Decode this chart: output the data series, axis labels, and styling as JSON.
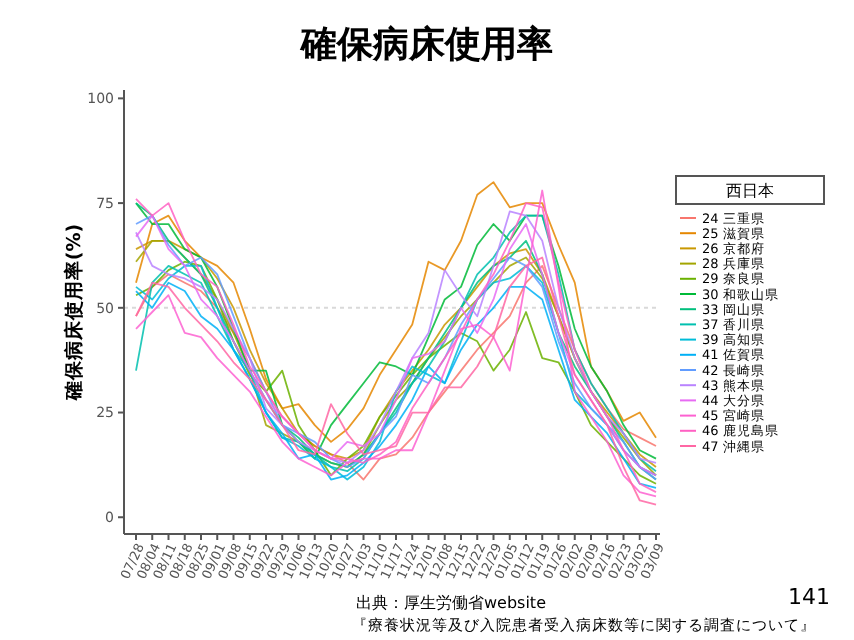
{
  "chart_data": {
    "type": "line",
    "title": "確保病床使用率",
    "ylabel": "確保病床使用率(%)",
    "legend_title": "西日本",
    "legend": "right",
    "grid": false,
    "marker": "none",
    "line_style": "solid",
    "ylim": [
      -4,
      102
    ],
    "yticks": [
      0,
      25,
      50,
      75,
      100
    ],
    "categories": [
      "07/28",
      "08/04",
      "08/11",
      "08/18",
      "08/25",
      "09/01",
      "09/08",
      "09/15",
      "09/22",
      "09/29",
      "10/06",
      "10/13",
      "10/20",
      "10/27",
      "11/03",
      "11/10",
      "11/17",
      "11/24",
      "12/01",
      "12/08",
      "12/15",
      "12/22",
      "12/29",
      "01/05",
      "01/12",
      "01/19",
      "01/26",
      "02/02",
      "02/09",
      "02/16",
      "02/23",
      "03/02",
      "03/09"
    ],
    "ref_lines": [
      {
        "axis": "y",
        "value": 50,
        "color": "#d9d9d9",
        "line_style": "dotted"
      }
    ],
    "series": [
      {
        "name": "24 三重県",
        "color": "#F8766D",
        "values": [
          48,
          55,
          58,
          56,
          54,
          50,
          44,
          38,
          30,
          24,
          20,
          17,
          15,
          13,
          9,
          14,
          15,
          19,
          25,
          30,
          35,
          40,
          44,
          48,
          56,
          60,
          50,
          40,
          32,
          26,
          21,
          19,
          17
        ]
      },
      {
        "name": "25 滋賀県",
        "color": "#E58700",
        "values": [
          56,
          70,
          72,
          66,
          62,
          60,
          56,
          45,
          33,
          26,
          27,
          22,
          18,
          21,
          26,
          34,
          40,
          46,
          61,
          59,
          66,
          77,
          80,
          74,
          75,
          75,
          65,
          56,
          36,
          30,
          23,
          25,
          19
        ]
      },
      {
        "name": "26 京都府",
        "color": "#C99800",
        "values": [
          64,
          66,
          66,
          64,
          62,
          57,
          50,
          40,
          32,
          26,
          20,
          17,
          15,
          14,
          16,
          24,
          30,
          35,
          40,
          46,
          50,
          55,
          60,
          63,
          64,
          58,
          48,
          38,
          30,
          25,
          20,
          15,
          12
        ]
      },
      {
        "name": "28 兵庫県",
        "color": "#A3A500",
        "values": [
          61,
          66,
          66,
          62,
          58,
          52,
          44,
          35,
          22,
          20,
          18,
          15,
          13,
          12,
          15,
          22,
          28,
          32,
          38,
          43,
          48,
          52,
          56,
          60,
          62,
          57,
          48,
          38,
          30,
          24,
          19,
          14,
          10
        ]
      },
      {
        "name": "29 奈良県",
        "color": "#6BB100",
        "values": [
          53,
          55,
          59,
          61,
          60,
          52,
          42,
          34,
          30,
          35,
          22,
          16,
          10,
          14,
          17,
          24,
          29,
          34,
          38,
          41,
          44,
          42,
          35,
          40,
          49,
          38,
          37,
          30,
          22,
          18,
          14,
          10,
          8
        ]
      },
      {
        "name": "30 和歌山県",
        "color": "#00BA38",
        "values": [
          75,
          70,
          70,
          64,
          62,
          55,
          45,
          35,
          35,
          22,
          18,
          14,
          22,
          27,
          32,
          37,
          36,
          34,
          43,
          52,
          55,
          65,
          70,
          66,
          72,
          72,
          60,
          45,
          36,
          30,
          22,
          16,
          14
        ]
      },
      {
        "name": "33 岡山県",
        "color": "#00BF7D",
        "values": [
          75,
          72,
          66,
          62,
          58,
          50,
          42,
          35,
          28,
          22,
          19,
          15,
          13,
          12,
          15,
          20,
          26,
          32,
          38,
          44,
          50,
          56,
          60,
          62,
          66,
          58,
          44,
          36,
          30,
          24,
          18,
          12,
          9
        ]
      },
      {
        "name": "37 香川県",
        "color": "#00C0AF",
        "values": [
          35,
          56,
          60,
          58,
          56,
          48,
          40,
          33,
          25,
          19,
          18,
          15,
          12,
          11,
          14,
          20,
          25,
          32,
          36,
          42,
          50,
          58,
          62,
          68,
          72,
          72,
          58,
          40,
          32,
          26,
          20,
          14,
          11
        ]
      },
      {
        "name": "39 高知県",
        "color": "#00BCD8",
        "values": [
          55,
          52,
          57,
          60,
          60,
          50,
          40,
          35,
          25,
          19,
          17,
          14,
          12,
          9,
          12,
          18,
          30,
          36,
          34,
          32,
          42,
          52,
          56,
          57,
          60,
          56,
          44,
          30,
          26,
          22,
          16,
          12,
          10
        ]
      },
      {
        "name": "41 佐賀県",
        "color": "#00B0F6",
        "values": [
          54,
          50,
          56,
          54,
          48,
          45,
          40,
          33,
          25,
          20,
          14,
          15,
          9,
          10,
          13,
          17,
          22,
          28,
          36,
          32,
          40,
          46,
          50,
          55,
          55,
          52,
          40,
          28,
          24,
          20,
          14,
          8,
          7
        ]
      },
      {
        "name": "42 長崎県",
        "color": "#619CFF",
        "values": [
          70,
          72,
          65,
          60,
          62,
          58,
          48,
          38,
          30,
          22,
          20,
          18,
          14,
          12,
          14,
          20,
          24,
          34,
          32,
          38,
          46,
          52,
          57,
          62,
          60,
          55,
          42,
          32,
          26,
          22,
          18,
          12,
          9
        ]
      },
      {
        "name": "43 熊本県",
        "color": "#B983FF",
        "values": [
          68,
          60,
          58,
          57,
          55,
          52,
          45,
          38,
          26,
          22,
          18,
          16,
          14,
          13,
          16,
          22,
          30,
          38,
          44,
          59,
          53,
          48,
          60,
          73,
          72,
          66,
          50,
          38,
          30,
          24,
          20,
          14,
          13
        ]
      },
      {
        "name": "44 大分県",
        "color": "#E76BF3",
        "values": [
          67,
          72,
          64,
          60,
          52,
          48,
          42,
          35,
          28,
          24,
          20,
          16,
          14,
          18,
          17,
          20,
          28,
          38,
          39,
          42,
          50,
          44,
          52,
          64,
          70,
          58,
          44,
          34,
          28,
          22,
          16,
          12,
          10
        ]
      },
      {
        "name": "45 宮崎県",
        "color": "#FD61D1",
        "values": [
          45,
          49,
          53,
          44,
          43,
          38,
          34,
          30,
          24,
          18,
          14,
          12,
          10,
          13,
          14,
          14,
          16,
          16,
          25,
          35,
          45,
          46,
          43,
          35,
          57,
          78,
          55,
          30,
          24,
          18,
          10,
          6,
          5
        ]
      },
      {
        "name": "46 鹿児島県",
        "color": "#FF61C3",
        "values": [
          76,
          72,
          75,
          66,
          58,
          55,
          46,
          36,
          30,
          24,
          20,
          16,
          14,
          14,
          13,
          15,
          18,
          26,
          32,
          38,
          44,
          52,
          58,
          66,
          75,
          74,
          56,
          40,
          30,
          24,
          16,
          8,
          6
        ]
      },
      {
        "name": "47 沖縄県",
        "color": "#FF67A4",
        "values": [
          48,
          56,
          55,
          50,
          46,
          42,
          37,
          33,
          28,
          22,
          16,
          15,
          27,
          20,
          15,
          16,
          17,
          25,
          25,
          31,
          31,
          36,
          43,
          55,
          60,
          62,
          48,
          34,
          28,
          22,
          12,
          4,
          3
        ]
      }
    ],
    "annotations": [
      "出典：厚生労働省website",
      "『療養状況等及び入院患者受入病床数等に関する調査について』",
      "141"
    ]
  }
}
